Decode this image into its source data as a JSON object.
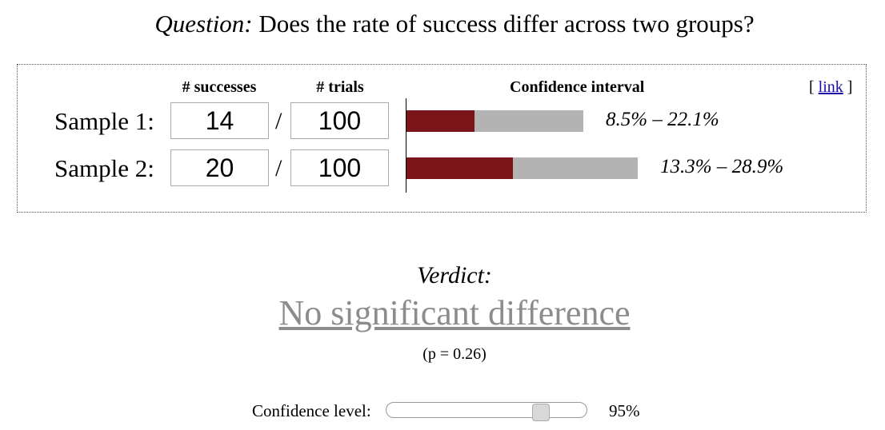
{
  "question": {
    "prefix": "Question:",
    "text": "Does the rate of success differ across two groups?"
  },
  "panel": {
    "headers": {
      "successes": "# successes",
      "trials": "# trials",
      "ci": "Confidence interval"
    },
    "link": {
      "open": "[",
      "label": "link",
      "close": "]"
    },
    "samples": [
      {
        "label": "Sample 1:",
        "successes": "14",
        "slash": "/",
        "trials": "100",
        "ci_text": "8.5% – 22.1%",
        "ci_low": 0.085,
        "ci_high": 0.221,
        "rate": 0.14
      },
      {
        "label": "Sample 2:",
        "successes": "20",
        "slash": "/",
        "trials": "100",
        "ci_text": "13.3% – 28.9%",
        "ci_low": 0.133,
        "ci_high": 0.289,
        "rate": 0.2
      }
    ],
    "colors": {
      "bar_fill": "#7a151a",
      "bar_track": "#b3b3b3"
    }
  },
  "verdict": {
    "label": "Verdict:",
    "value": "No significant difference",
    "pvalue": "(p = 0.26)"
  },
  "confidence": {
    "label": "Confidence level:",
    "value": "95%",
    "slider_fraction": 0.8
  }
}
